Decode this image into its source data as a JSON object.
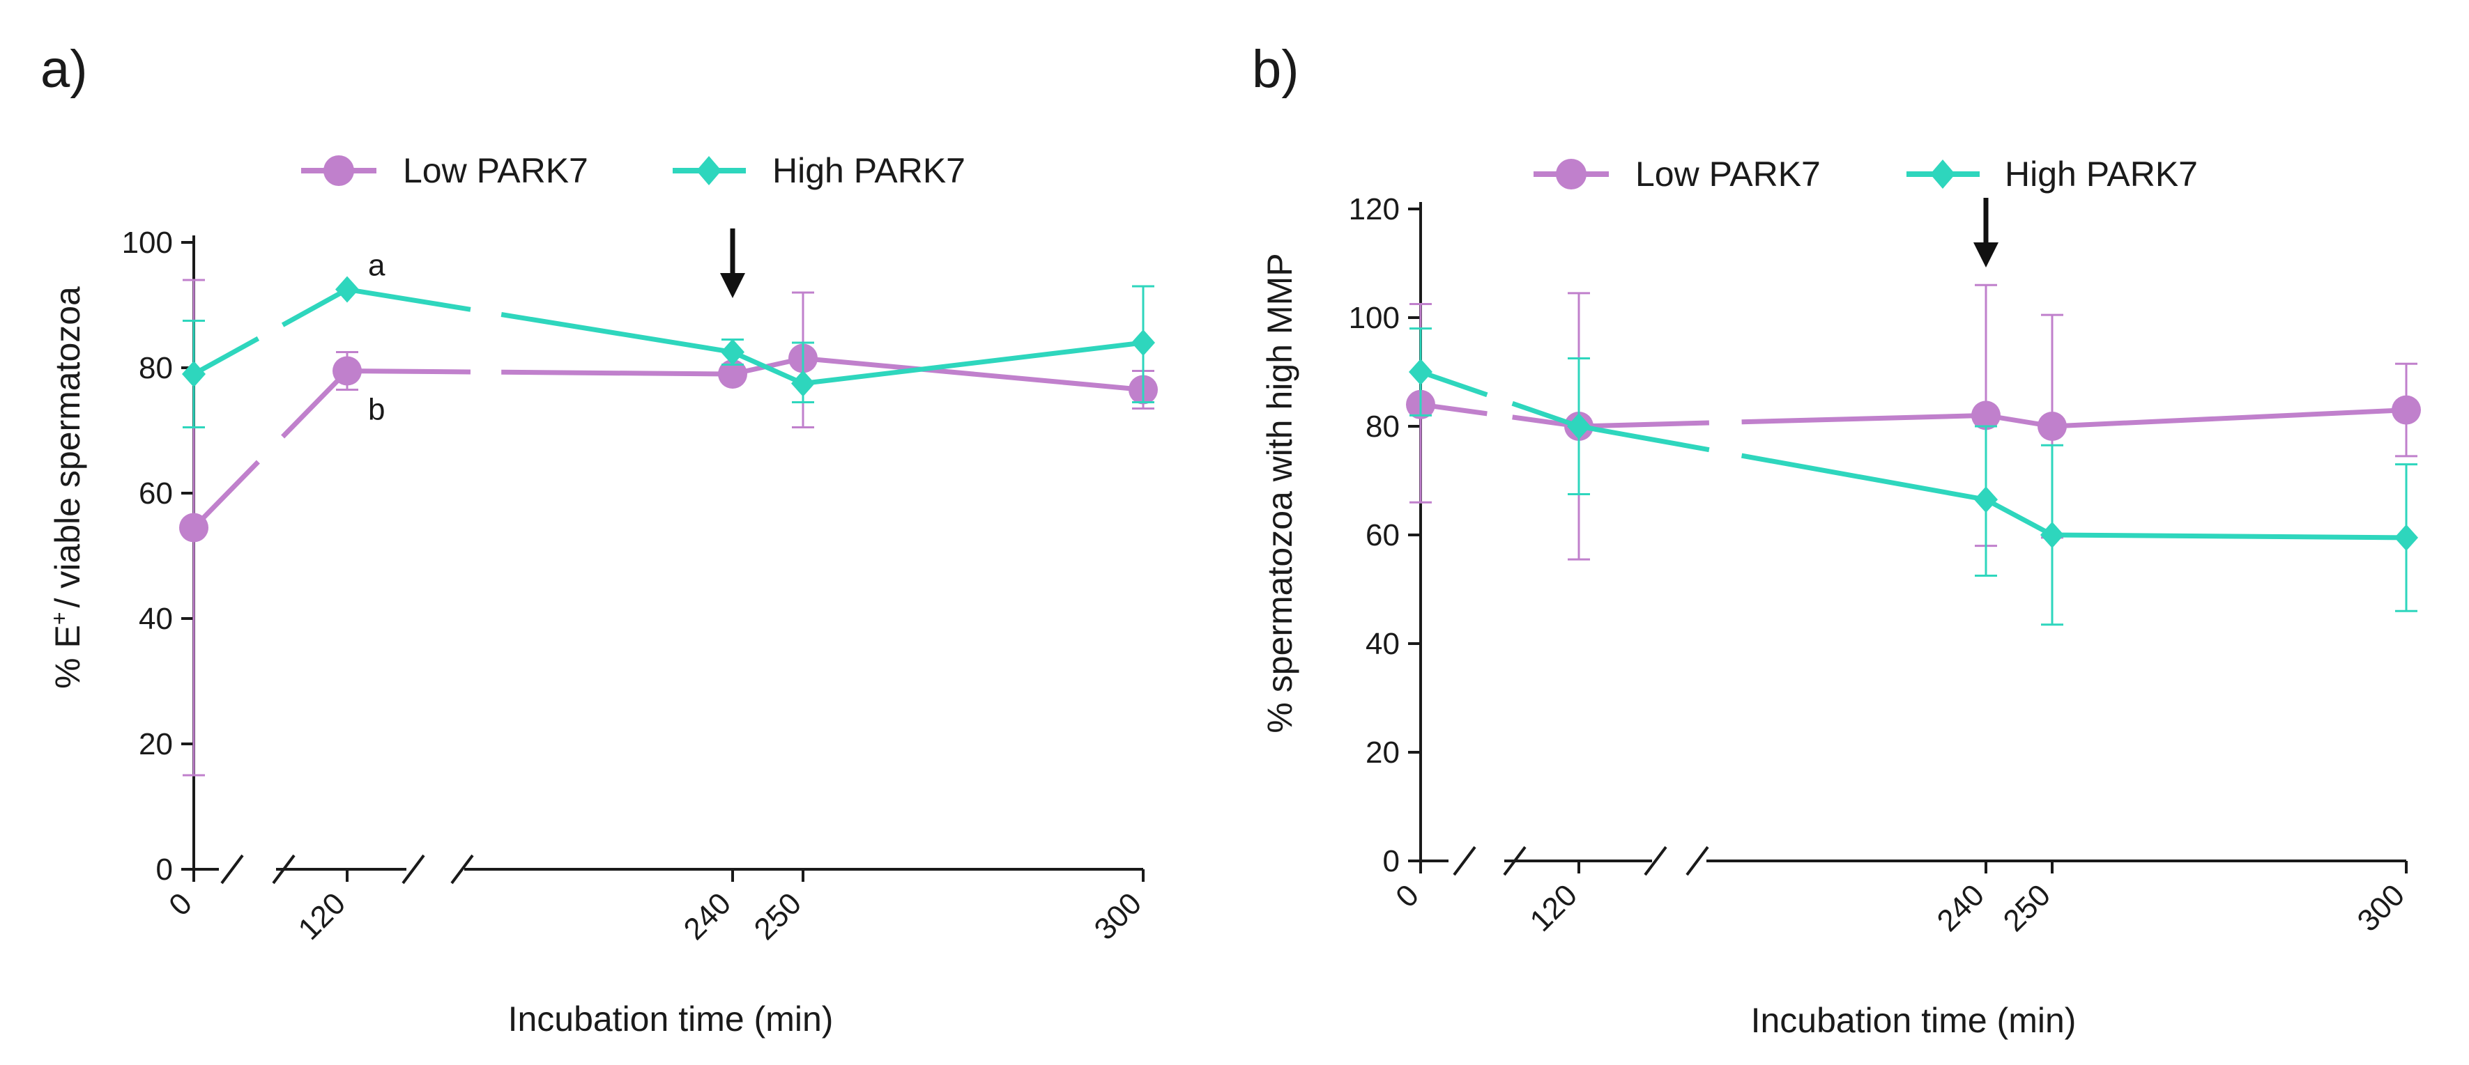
{
  "colors": {
    "low": "#c080cc",
    "high": "#2ed6bd",
    "axis": "#1a1a1a"
  },
  "legend": {
    "low_label": "Low PARK7",
    "high_label": "High PARK7"
  },
  "chart_data": [
    {
      "panel": "a)",
      "type": "line",
      "title": "",
      "xlabel": "Incubation time (min)",
      "ylabel_prefix": "% E",
      "ylabel_sup": "+",
      "ylabel_suffix": "/ viable spermatozoa",
      "x_ticks": [
        "0",
        "120",
        "240",
        "250",
        "300"
      ],
      "y_ticks": [
        "0",
        "20",
        "40",
        "60",
        "80",
        "100"
      ],
      "ylim": [
        0,
        100
      ],
      "x": [
        0,
        120,
        240,
        250,
        300
      ],
      "legend_position": "top",
      "arrow_at_x": 240,
      "series": [
        {
          "name": "Low PARK7",
          "values": [
            54.5,
            79.5,
            79,
            81.5,
            76.5
          ],
          "err_low": [
            15,
            76.5,
            79,
            70.5,
            73.5
          ],
          "err_high": [
            94,
            82.5,
            79,
            92,
            79.5
          ]
        },
        {
          "name": "High PARK7",
          "values": [
            79,
            92.5,
            82.5,
            77.5,
            84
          ],
          "err_low": [
            70.5,
            92.5,
            80.5,
            74.5,
            74.5
          ],
          "err_high": [
            87.5,
            92.5,
            84.5,
            84,
            93
          ]
        }
      ],
      "annotations": [
        {
          "text": "a",
          "x": 120,
          "y": 92.5,
          "series": "High PARK7"
        },
        {
          "text": "b",
          "x": 120,
          "y": 79.5,
          "series": "Low PARK7"
        }
      ]
    },
    {
      "panel": "b)",
      "type": "line",
      "title": "",
      "xlabel": "Incubation time (min)",
      "ylabel_prefix": "% spermatozoa with high MMP",
      "ylabel_sup": "",
      "ylabel_suffix": "",
      "x_ticks": [
        "0",
        "120",
        "240",
        "250",
        "300"
      ],
      "y_ticks": [
        "0",
        "20",
        "40",
        "60",
        "80",
        "100",
        "120"
      ],
      "ylim": [
        0,
        120
      ],
      "x": [
        0,
        120,
        240,
        250,
        300
      ],
      "legend_position": "top",
      "arrow_at_x": 240,
      "series": [
        {
          "name": "Low PARK7",
          "values": [
            84,
            80,
            82,
            80,
            83
          ],
          "err_low": [
            66,
            55.5,
            58,
            59.5,
            74.5
          ],
          "err_high": [
            102.5,
            104.5,
            106,
            100.5,
            91.5
          ]
        },
        {
          "name": "High PARK7",
          "values": [
            90,
            80,
            66.5,
            60,
            59.5
          ],
          "err_low": [
            82,
            67.5,
            52.5,
            43.5,
            46
          ],
          "err_high": [
            98,
            92.5,
            80,
            76.5,
            73
          ]
        }
      ],
      "annotations": []
    }
  ]
}
